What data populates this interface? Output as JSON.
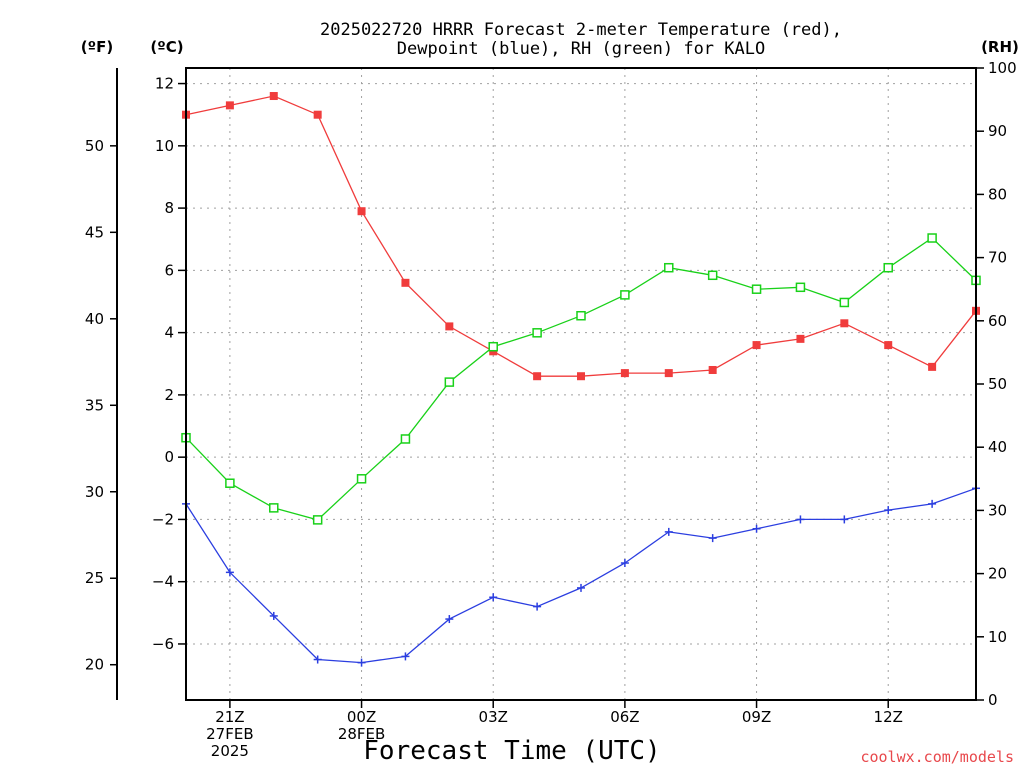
{
  "title_line1": "2025022720 HRRR Forecast 2-meter Temperature (red),",
  "title_line2": "Dewpoint (blue), RH (green) for KALO",
  "units": {
    "f": "(ºF)",
    "c": "(ºC)",
    "rh": "(RH)"
  },
  "xlabel": "Forecast Time (UTC)",
  "credit": "coolwx.com/models",
  "colors": {
    "temperature": "#f03c3c",
    "dewpoint": "#2b3ee0",
    "rh": "#19d119",
    "grid": "#a0a0a0"
  },
  "chart_data": {
    "type": "line",
    "title": "2025022720 HRRR Forecast 2-meter Temperature (red), Dewpoint (blue), RH (green) for KALO",
    "xlabel": "Forecast Time (UTC)",
    "x_hours": [
      20,
      21,
      22,
      23,
      24,
      25,
      26,
      27,
      28,
      29,
      30,
      31,
      32,
      33,
      34,
      35,
      36,
      37,
      38
    ],
    "xlim": [
      20,
      38
    ],
    "x_ticks": [
      {
        "hour": 21,
        "lines": [
          "21Z",
          "27FEB",
          "2025"
        ]
      },
      {
        "hour": 24,
        "lines": [
          "00Z",
          "28FEB"
        ]
      },
      {
        "hour": 27,
        "lines": [
          "03Z"
        ]
      },
      {
        "hour": 30,
        "lines": [
          "06Z"
        ]
      },
      {
        "hour": 33,
        "lines": [
          "09Z"
        ]
      },
      {
        "hour": 36,
        "lines": [
          "12Z"
        ]
      }
    ],
    "y_left_c": {
      "label": "(ºC)",
      "lim": [
        -7.8,
        12.5
      ],
      "ticks": [
        12,
        10,
        8,
        6,
        4,
        2,
        0,
        -2,
        -4,
        -6
      ]
    },
    "y_left_f": {
      "label": "(ºF)",
      "ticks": [
        50,
        45,
        40,
        35,
        30,
        25,
        20
      ]
    },
    "y_right_rh": {
      "label": "(RH)",
      "lim": [
        0,
        100
      ],
      "ticks": [
        100,
        90,
        80,
        70,
        60,
        50,
        40,
        30,
        20,
        10,
        0
      ]
    },
    "grid": true,
    "series": [
      {
        "name": "Temperature",
        "axis": "c",
        "marker": "filled-square",
        "values": [
          11.0,
          11.3,
          11.6,
          11.0,
          7.9,
          5.6,
          4.2,
          3.4,
          2.6,
          2.6,
          2.7,
          2.7,
          2.8,
          3.6,
          3.8,
          4.3,
          3.6,
          2.9,
          4.7
        ]
      },
      {
        "name": "Dewpoint",
        "axis": "c",
        "marker": "plus",
        "values": [
          -1.5,
          -3.7,
          -5.1,
          -6.5,
          -6.6,
          -6.4,
          -5.2,
          -4.5,
          -4.8,
          -4.2,
          -3.4,
          -2.4,
          -2.6,
          -2.3,
          -2.0,
          -2.0,
          -1.7,
          -1.5,
          -1.0
        ]
      },
      {
        "name": "RH",
        "axis": "rh",
        "marker": "open-square",
        "values": [
          41.5,
          34.3,
          30.4,
          28.5,
          35.0,
          41.3,
          50.3,
          55.9,
          58.1,
          60.8,
          64.1,
          68.4,
          67.2,
          65.0,
          65.3,
          62.9,
          68.4,
          73.1,
          66.4
        ]
      }
    ]
  }
}
